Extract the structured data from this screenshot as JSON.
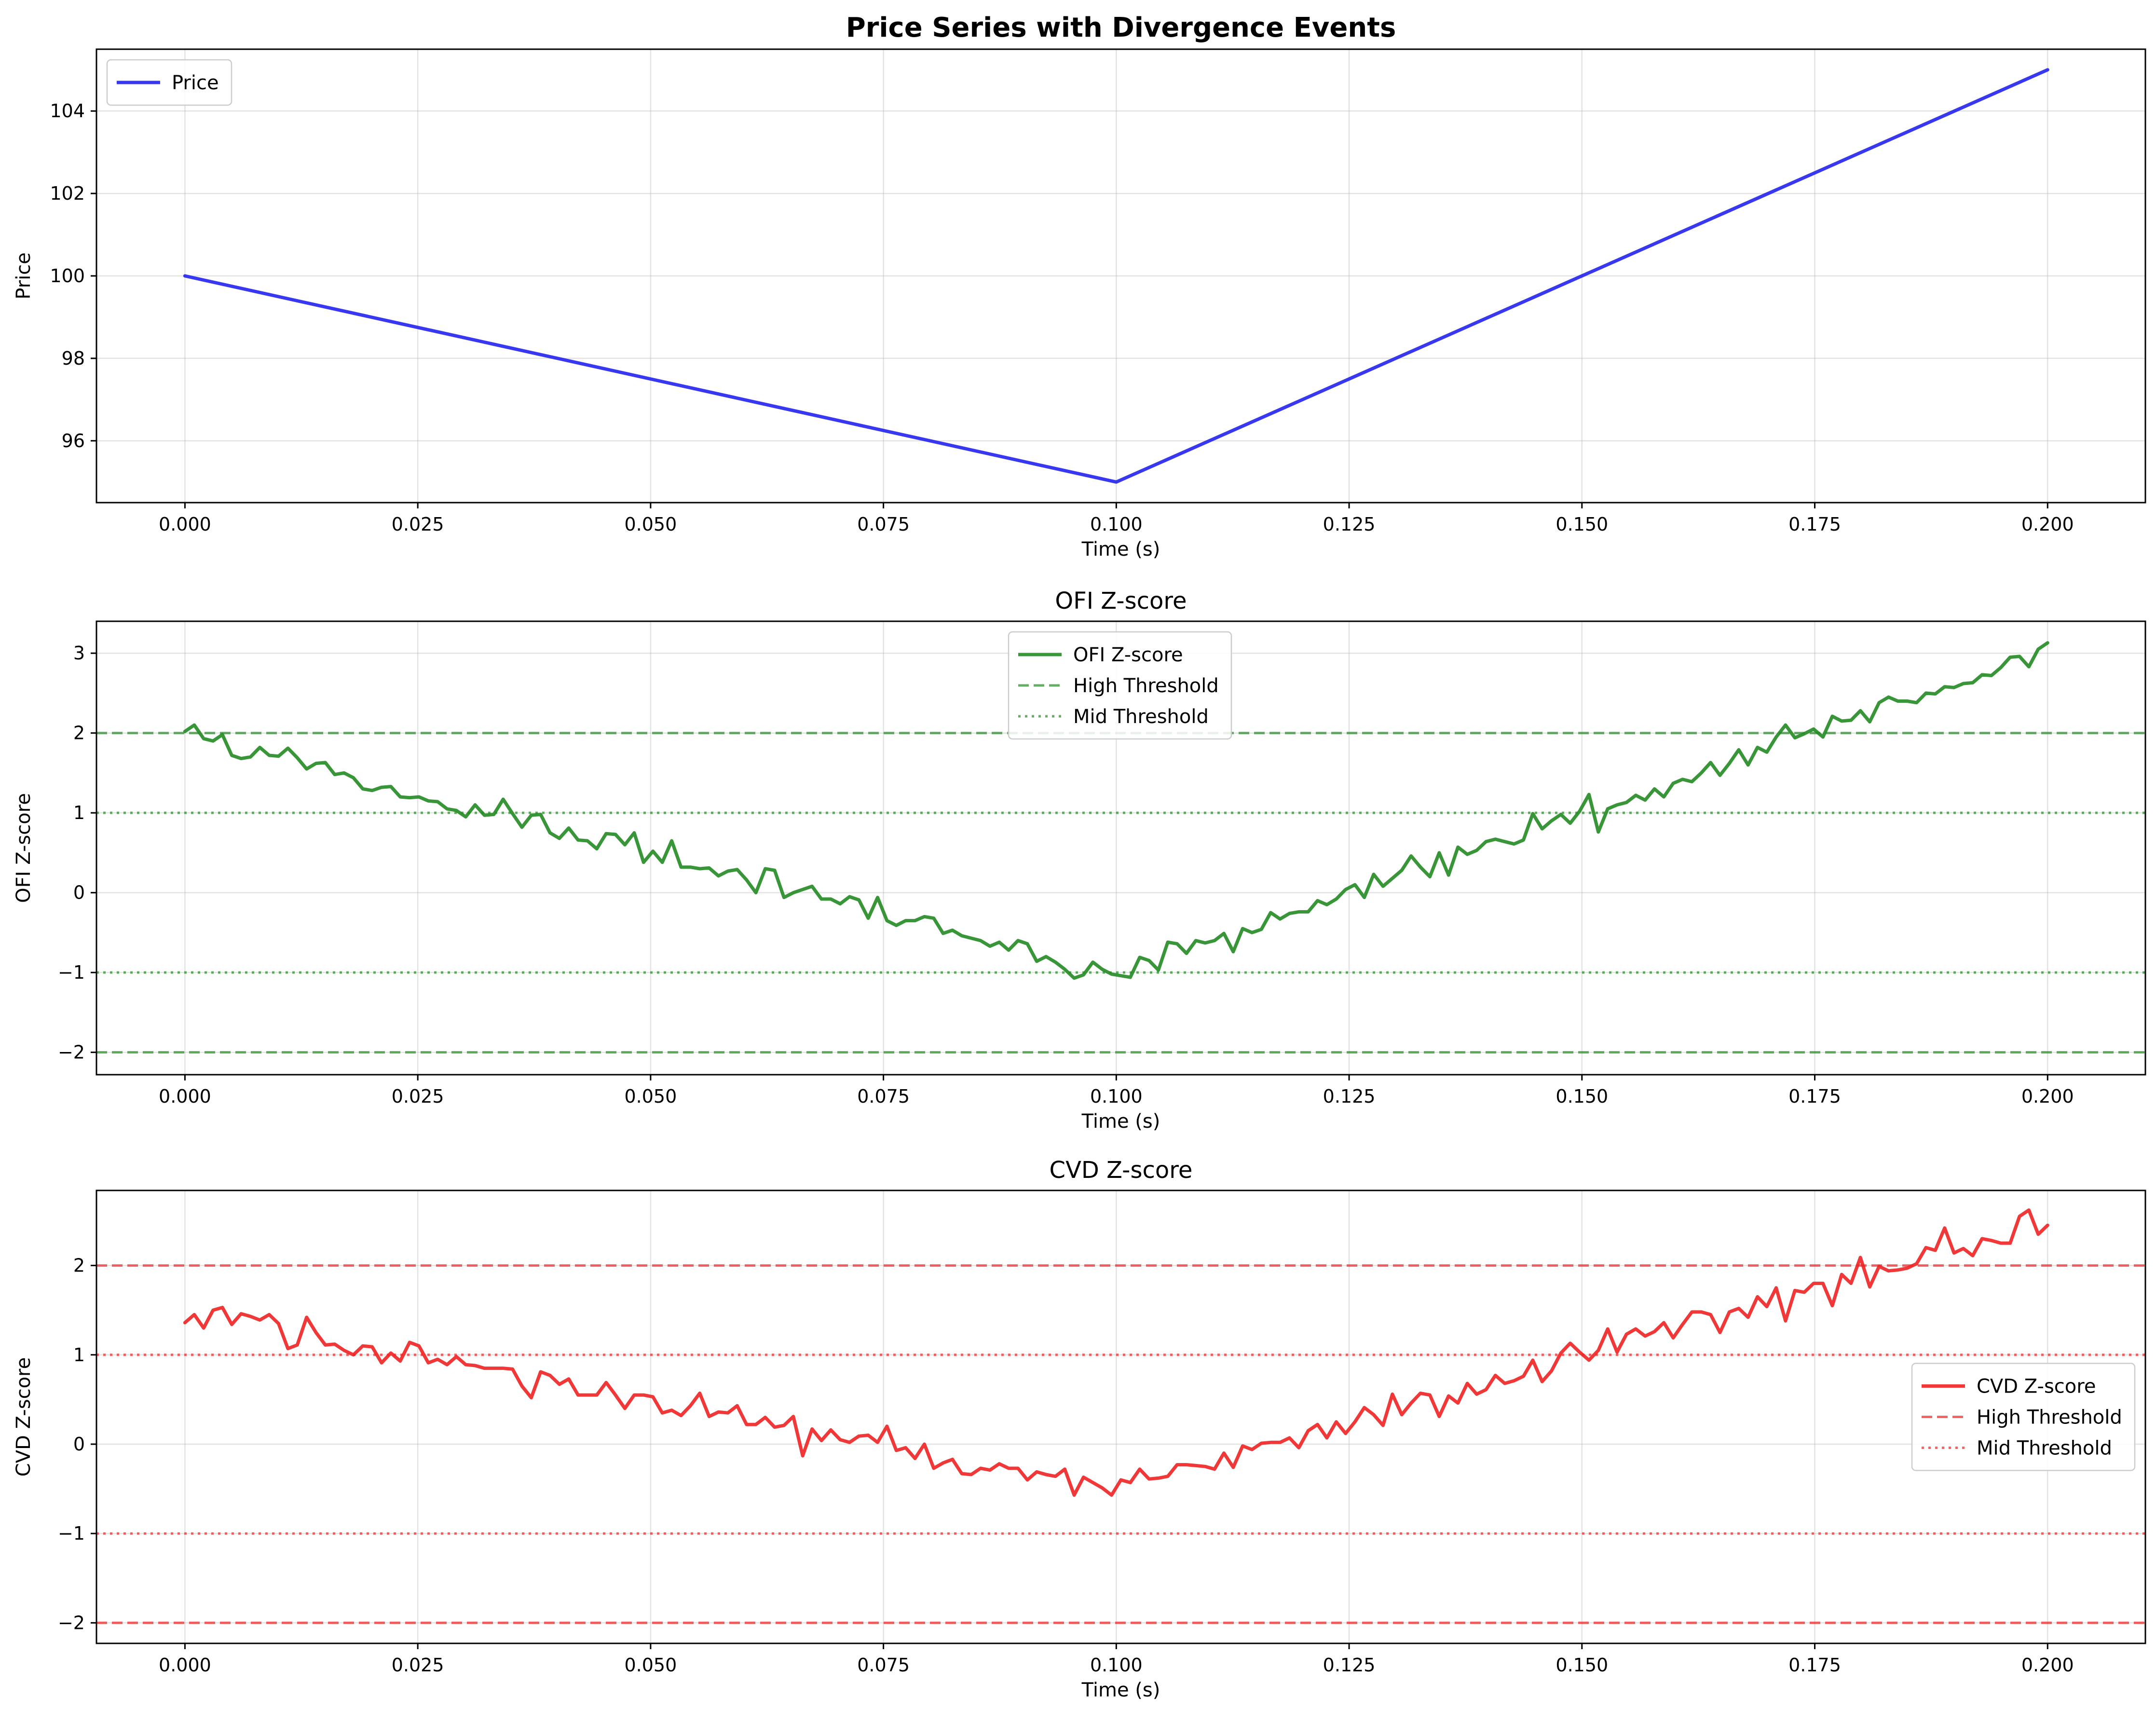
{
  "chart_data": [
    {
      "type": "line",
      "title": "Price Series with Divergence Events",
      "title_weight": "bold",
      "xlabel": "Time (s)",
      "ylabel": "Price",
      "xlim": [
        -0.0095,
        0.2105
      ],
      "ylim": [
        94.5,
        105.5
      ],
      "xticks": [
        0.0,
        0.025,
        0.05,
        0.075,
        0.1,
        0.125,
        0.15,
        0.175,
        0.2
      ],
      "xtick_labels": [
        "0.000",
        "0.025",
        "0.050",
        "0.075",
        "0.100",
        "0.125",
        "0.150",
        "0.175",
        "0.200"
      ],
      "yticks": [
        96,
        98,
        100,
        102,
        104
      ],
      "ytick_labels": [
        "96",
        "98",
        "100",
        "102",
        "104"
      ],
      "grid": true,
      "legend_position": "upper-left",
      "series": [
        {
          "name": "Price",
          "color": "#2222ee",
          "style": "solid",
          "x": [
            0.0,
            0.1,
            0.2
          ],
          "y": [
            100,
            95,
            105
          ]
        }
      ]
    },
    {
      "type": "line",
      "title": "OFI Z-score",
      "title_weight": "normal",
      "xlabel": "Time (s)",
      "ylabel": "OFI Z-score",
      "xlim": [
        -0.0095,
        0.2105
      ],
      "ylim": [
        -2.28,
        3.4
      ],
      "xticks": [
        0.0,
        0.025,
        0.05,
        0.075,
        0.1,
        0.125,
        0.15,
        0.175,
        0.2
      ],
      "xtick_labels": [
        "0.000",
        "0.025",
        "0.050",
        "0.075",
        "0.100",
        "0.125",
        "0.150",
        "0.175",
        "0.200"
      ],
      "yticks": [
        -2,
        -1,
        0,
        1,
        2,
        3
      ],
      "ytick_labels": [
        "−2",
        "−1",
        "0",
        "1",
        "2",
        "3"
      ],
      "grid": true,
      "legend_position": "upper-center",
      "series": [
        {
          "name": "OFI Z-score",
          "color": "#228b22",
          "style": "solid",
          "x_range": [
            0.0,
            0.2
          ],
          "values": [
            2.02,
            2.1,
            1.93,
            1.9,
            1.98,
            1.72,
            1.68,
            1.7,
            1.82,
            1.72,
            1.71,
            1.81,
            1.69,
            1.55,
            1.62,
            1.63,
            1.48,
            1.5,
            1.44,
            1.3,
            1.28,
            1.32,
            1.33,
            1.2,
            1.19,
            1.2,
            1.15,
            1.14,
            1.05,
            1.03,
            0.95,
            1.1,
            0.97,
            0.98,
            1.17,
            0.99,
            0.82,
            0.97,
            0.98,
            0.75,
            0.68,
            0.81,
            0.66,
            0.65,
            0.55,
            0.74,
            0.73,
            0.6,
            0.75,
            0.38,
            0.52,
            0.38,
            0.65,
            0.32,
            0.32,
            0.3,
            0.31,
            0.21,
            0.27,
            0.29,
            0.16,
            0.0,
            0.3,
            0.28,
            -0.06,
            0.0,
            0.04,
            0.08,
            -0.08,
            -0.08,
            -0.14,
            -0.05,
            -0.09,
            -0.32,
            -0.06,
            -0.35,
            -0.41,
            -0.35,
            -0.35,
            -0.3,
            -0.32,
            -0.51,
            -0.47,
            -0.54,
            -0.57,
            -0.6,
            -0.67,
            -0.62,
            -0.72,
            -0.6,
            -0.64,
            -0.86,
            -0.8,
            -0.87,
            -0.96,
            -1.07,
            -1.03,
            -0.87,
            -0.96,
            -1.02,
            -1.04,
            -1.06,
            -0.81,
            -0.85,
            -0.97,
            -0.62,
            -0.64,
            -0.76,
            -0.6,
            -0.63,
            -0.6,
            -0.51,
            -0.74,
            -0.45,
            -0.5,
            -0.46,
            -0.25,
            -0.33,
            -0.26,
            -0.24,
            -0.24,
            -0.1,
            -0.15,
            -0.08,
            0.04,
            0.1,
            -0.06,
            0.23,
            0.08,
            0.18,
            0.28,
            0.46,
            0.32,
            0.2,
            0.5,
            0.22,
            0.57,
            0.48,
            0.53,
            0.64,
            0.67,
            0.64,
            0.61,
            0.66,
            0.99,
            0.8,
            0.9,
            0.98,
            0.87,
            1.02,
            1.23,
            0.76,
            1.05,
            1.1,
            1.13,
            1.22,
            1.16,
            1.3,
            1.2,
            1.37,
            1.42,
            1.39,
            1.5,
            1.63,
            1.47,
            1.62,
            1.79,
            1.6,
            1.82,
            1.76,
            1.95,
            2.1,
            1.94,
            1.99,
            2.05,
            1.95,
            2.21,
            2.15,
            2.16,
            2.28,
            2.14,
            2.38,
            2.45,
            2.4,
            2.4,
            2.38,
            2.5,
            2.49,
            2.58,
            2.57,
            2.62,
            2.63,
            2.73,
            2.72,
            2.82,
            2.95,
            2.96,
            2.83,
            3.05,
            3.13
          ]
        }
      ],
      "thresholds": [
        {
          "name": "High Threshold",
          "values": [
            2,
            -2
          ],
          "style": "dashed",
          "color": "#228b22",
          "alpha": 0.7
        },
        {
          "name": "Mid Threshold",
          "values": [
            1,
            -1
          ],
          "style": "dotted",
          "color": "#228b22",
          "alpha": 0.7
        }
      ]
    },
    {
      "type": "line",
      "title": "CVD Z-score",
      "title_weight": "normal",
      "xlabel": "Time (s)",
      "ylabel": "CVD Z-score",
      "xlim": [
        -0.0095,
        0.2105
      ],
      "ylim": [
        -2.23,
        2.84
      ],
      "xticks": [
        0.0,
        0.025,
        0.05,
        0.075,
        0.1,
        0.125,
        0.15,
        0.175,
        0.2
      ],
      "xtick_labels": [
        "0.000",
        "0.025",
        "0.050",
        "0.075",
        "0.100",
        "0.125",
        "0.150",
        "0.175",
        "0.200"
      ],
      "yticks": [
        -2,
        -1,
        0,
        1,
        2
      ],
      "ytick_labels": [
        "−2",
        "−1",
        "0",
        "1",
        "2"
      ],
      "grid": true,
      "legend_position": "center-right",
      "series": [
        {
          "name": "CVD Z-score",
          "color": "#ee2222",
          "style": "solid",
          "x_range": [
            0.0,
            0.2
          ],
          "values": [
            1.36,
            1.45,
            1.3,
            1.5,
            1.53,
            1.34,
            1.46,
            1.43,
            1.39,
            1.45,
            1.35,
            1.07,
            1.11,
            1.42,
            1.25,
            1.11,
            1.12,
            1.05,
            1.0,
            1.1,
            1.09,
            0.91,
            1.02,
            0.93,
            1.14,
            1.1,
            0.91,
            0.95,
            0.89,
            0.98,
            0.89,
            0.88,
            0.85,
            0.85,
            0.85,
            0.84,
            0.65,
            0.52,
            0.81,
            0.77,
            0.67,
            0.73,
            0.55,
            0.55,
            0.55,
            0.69,
            0.55,
            0.4,
            0.55,
            0.55,
            0.53,
            0.35,
            0.38,
            0.32,
            0.43,
            0.57,
            0.31,
            0.36,
            0.35,
            0.43,
            0.22,
            0.22,
            0.3,
            0.19,
            0.21,
            0.31,
            -0.13,
            0.17,
            0.04,
            0.16,
            0.05,
            0.02,
            0.09,
            0.1,
            0.02,
            0.2,
            -0.07,
            -0.04,
            -0.16,
            0.0,
            -0.27,
            -0.21,
            -0.17,
            -0.33,
            -0.34,
            -0.27,
            -0.29,
            -0.22,
            -0.27,
            -0.27,
            -0.4,
            -0.31,
            -0.34,
            -0.36,
            -0.28,
            -0.57,
            -0.37,
            -0.43,
            -0.49,
            -0.57,
            -0.4,
            -0.43,
            -0.28,
            -0.39,
            -0.38,
            -0.36,
            -0.23,
            -0.23,
            -0.24,
            -0.25,
            -0.28,
            -0.1,
            -0.26,
            -0.02,
            -0.06,
            0.01,
            0.02,
            0.02,
            0.07,
            -0.04,
            0.15,
            0.22,
            0.07,
            0.25,
            0.12,
            0.25,
            0.41,
            0.33,
            0.21,
            0.56,
            0.33,
            0.46,
            0.57,
            0.55,
            0.31,
            0.54,
            0.46,
            0.68,
            0.56,
            0.61,
            0.77,
            0.68,
            0.71,
            0.76,
            0.94,
            0.7,
            0.82,
            1.02,
            1.13,
            1.03,
            0.94,
            1.05,
            1.29,
            1.03,
            1.23,
            1.29,
            1.21,
            1.26,
            1.36,
            1.19,
            1.34,
            1.48,
            1.48,
            1.45,
            1.25,
            1.48,
            1.52,
            1.42,
            1.65,
            1.54,
            1.75,
            1.38,
            1.72,
            1.7,
            1.8,
            1.8,
            1.55,
            1.9,
            1.8,
            2.09,
            1.76,
            1.99,
            1.94,
            1.95,
            1.97,
            2.02,
            2.2,
            2.17,
            2.42,
            2.14,
            2.19,
            2.11,
            2.3,
            2.28,
            2.25,
            2.25,
            2.55,
            2.62,
            2.35,
            2.45
          ]
        }
      ],
      "thresholds": [
        {
          "name": "High Threshold",
          "values": [
            2,
            -2
          ],
          "style": "dashed",
          "color": "#ee2222",
          "alpha": 0.7
        },
        {
          "name": "Mid Threshold",
          "values": [
            1,
            -1
          ],
          "style": "dotted",
          "color": "#ee2222",
          "alpha": 0.7
        }
      ]
    }
  ]
}
